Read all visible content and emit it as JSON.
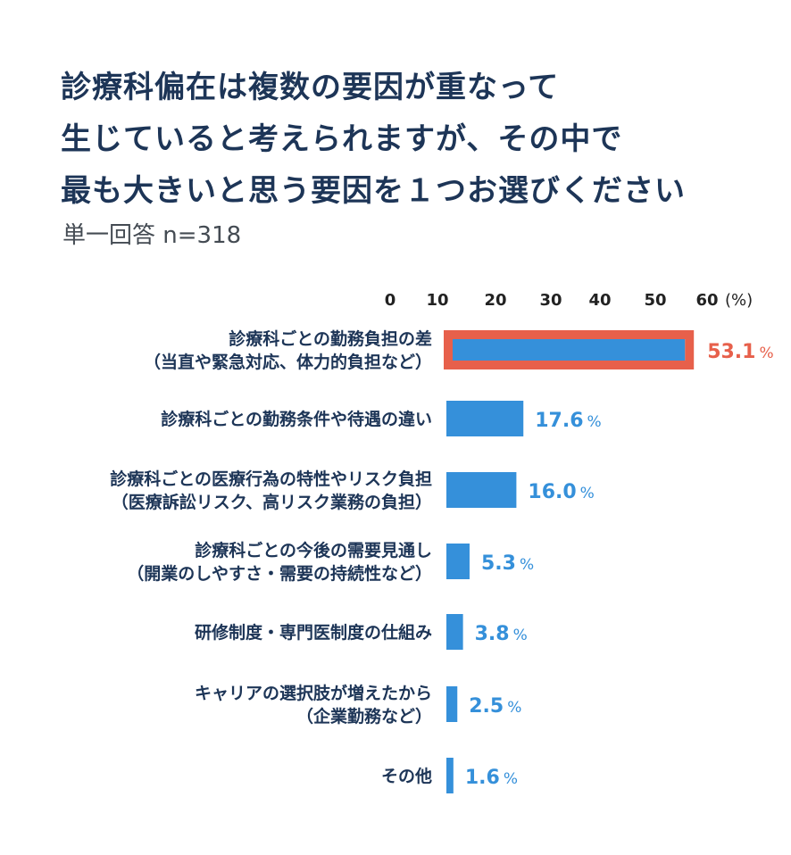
{
  "chart_data": {
    "type": "bar",
    "orientation": "horizontal",
    "title": [
      "診療科偏在は複数の要因が重なって",
      "生じていると考えられますが、その中で",
      "最も大きいと思う要因を１つお選びください"
    ],
    "subtitle": "単一回答 n=318",
    "x_ticks": [
      "0",
      "10",
      "20",
      "30",
      "40",
      "50",
      "60"
    ],
    "x_unit": "(%)",
    "xlim": [
      0,
      60
    ],
    "value_unit": "%",
    "categories": [
      [
        "診療科ごとの勤務負担の差",
        "（当直や緊急対応、体力的負担など）"
      ],
      [
        "診療科ごとの勤務条件や待遇の違い"
      ],
      [
        "診療科ごとの医療行為の特性やリスク負担",
        "（医療訴訟リスク、高リスク業務の負担）"
      ],
      [
        "診療科ごとの今後の需要見通し",
        "（開業のしやすさ・需要の持続性など）"
      ],
      [
        "研修制度・専門医制度の仕組み"
      ],
      [
        "キャリアの選択肢が増えたから",
        "（企業勤務など）"
      ],
      [
        "その他"
      ]
    ],
    "values": [
      53.1,
      17.6,
      16.0,
      5.3,
      3.8,
      2.5,
      1.6
    ],
    "value_labels": [
      "53.1",
      "17.6",
      "16.0",
      "5.3",
      "3.8",
      "2.5",
      "1.6"
    ],
    "highlight_index": 0,
    "colors": {
      "bar": "#3590da",
      "highlight": "#e7604b",
      "title": "#1d3557",
      "axis_text": "#222222",
      "category_text": "#1d3557"
    }
  }
}
